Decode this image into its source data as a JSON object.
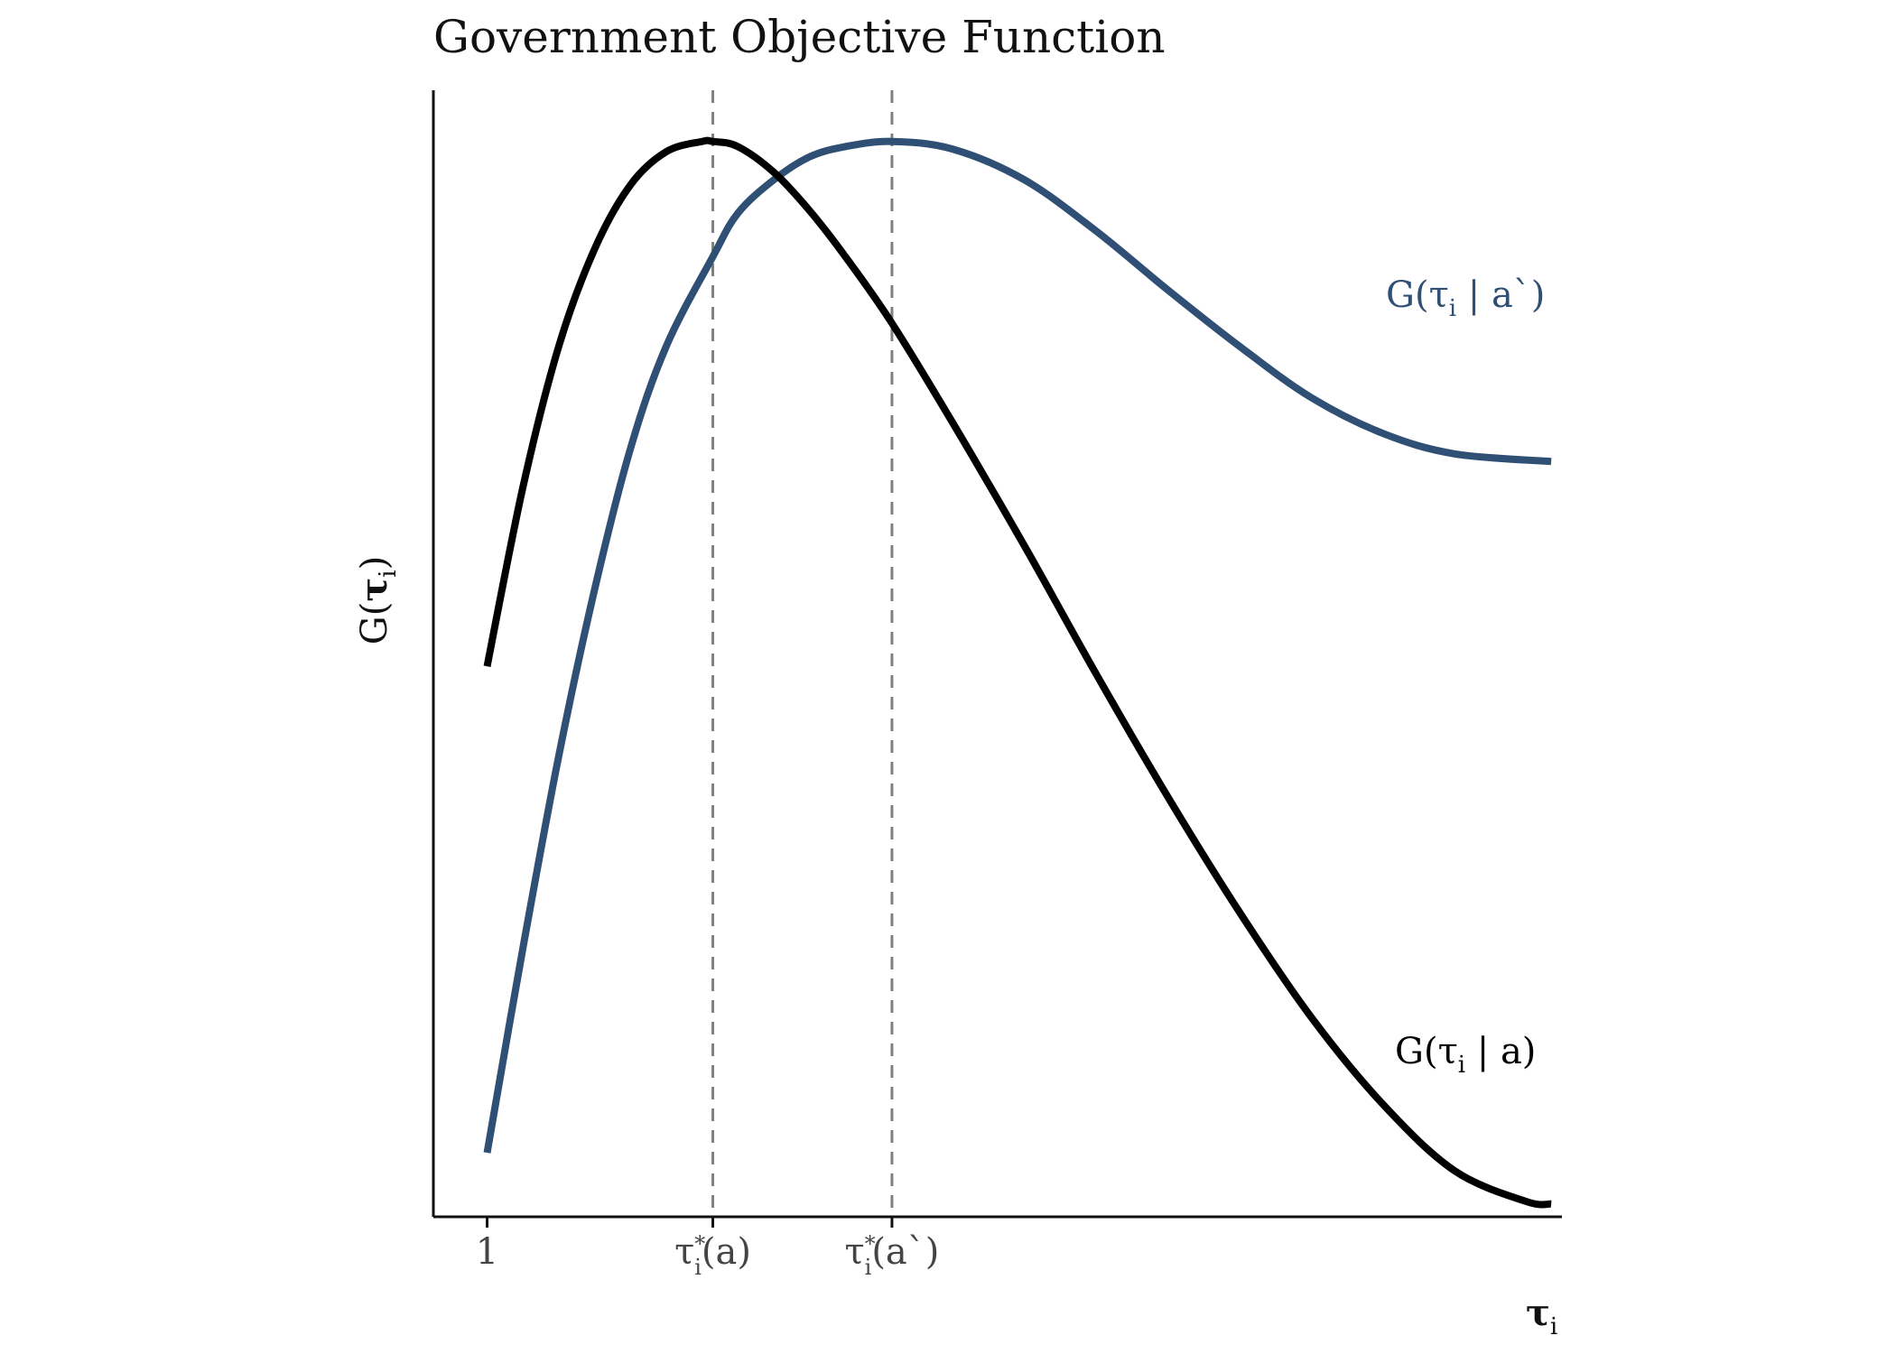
{
  "chart_data": {
    "type": "line",
    "title": "Government Objective Function",
    "xlabel": {
      "base": "τ",
      "sub": "i"
    },
    "ylabel": {
      "prefix": "G(",
      "base": "τ",
      "sub": "i",
      "suffix": ")"
    },
    "xlim": [
      0.85,
      4.0
    ],
    "ylim": [
      -0.2,
      4.2
    ],
    "x_ticks": [
      {
        "x": 1.0,
        "base": "1"
      },
      {
        "x": 1.63,
        "base": "τ",
        "sub": "i",
        "sup": "*",
        "rest": "(a)"
      },
      {
        "x": 2.13,
        "base": "τ",
        "sub": "i",
        "sup": "*",
        "rest": "(a`)"
      }
    ],
    "vlines": [
      1.63,
      2.13
    ],
    "series": [
      {
        "name": "G(τi | a)",
        "label": {
          "prefix": "G(",
          "base": "τ",
          "sub": "i",
          "rest": " | a)"
        },
        "color": "#000000",
        "x": [
          1.0,
          1.1,
          1.2,
          1.3,
          1.4,
          1.5,
          1.6,
          1.63,
          1.7,
          1.8,
          1.9,
          2.0,
          2.13,
          2.3,
          2.5,
          2.7,
          2.9,
          3.1,
          3.3,
          3.5,
          3.7,
          3.9,
          3.97
        ],
        "y": [
          1.95,
          2.65,
          3.2,
          3.58,
          3.83,
          3.96,
          4.0,
          4.0,
          3.98,
          3.88,
          3.73,
          3.55,
          3.29,
          2.9,
          2.42,
          1.92,
          1.44,
          0.99,
          0.58,
          0.24,
          -0.02,
          -0.14,
          -0.15
        ]
      },
      {
        "name": "G(τi | a`)",
        "label": {
          "prefix": "G(",
          "base": "τ",
          "sub": "i",
          "rest": " | a`)"
        },
        "color": "#2f4f74",
        "x": [
          1.0,
          1.1,
          1.2,
          1.3,
          1.4,
          1.5,
          1.63,
          1.7,
          1.8,
          1.9,
          2.0,
          2.13,
          2.3,
          2.5,
          2.7,
          2.9,
          3.1,
          3.3,
          3.5,
          3.7,
          3.97
        ],
        "y": [
          0.05,
          0.85,
          1.6,
          2.25,
          2.8,
          3.2,
          3.55,
          3.72,
          3.85,
          3.94,
          3.98,
          4.0,
          3.97,
          3.85,
          3.65,
          3.42,
          3.2,
          3.0,
          2.86,
          2.78,
          2.75
        ]
      }
    ],
    "grid": false,
    "legend": "direct-labels-right"
  }
}
